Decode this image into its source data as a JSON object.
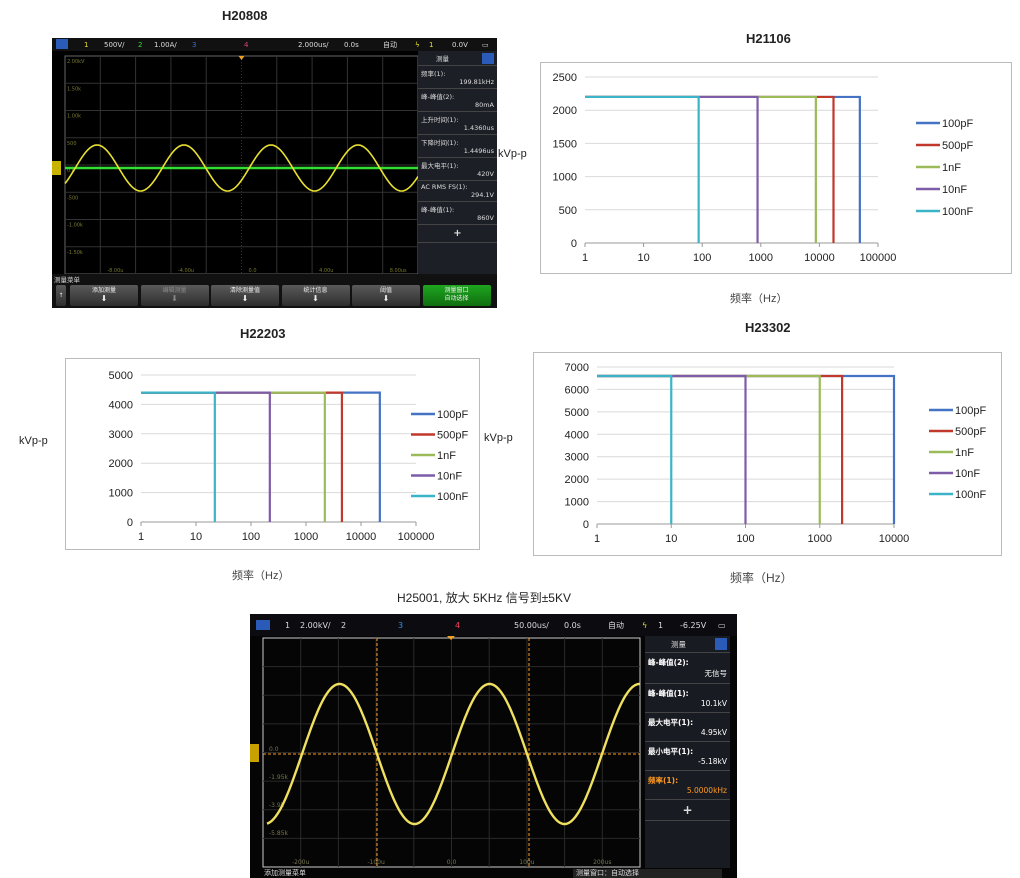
{
  "scope1": {
    "title": "H20808",
    "topbar": {
      "ch1": "1",
      "ch1_scale": "500V/",
      "ch2": "2",
      "ch2_scale": "1.00A/",
      "ch3": "3",
      "ch4": "4",
      "timebase": "2.000us/",
      "delay": "0.0s",
      "mode": "自动",
      "trig_ch": "1",
      "trig_level": "0.0V"
    },
    "y_ticks": [
      "2.00kV",
      "1.50k",
      "1.00k",
      "500",
      "0.0",
      "-500",
      "-1.00k",
      "-1.50k"
    ],
    "x_ticks": [
      "-8.00u",
      "-4.00u",
      "0.0",
      "4.00u",
      "8.00us"
    ],
    "panel_title": "测量",
    "measurements": [
      {
        "label": "频率(1):",
        "value": "199.81kHz"
      },
      {
        "label": "峰-峰值(2):",
        "value": "80mA"
      },
      {
        "label": "上升时间(1):",
        "value": "1.4360us"
      },
      {
        "label": "下降时间(1):",
        "value": "1.4496us"
      },
      {
        "label": "最大电平(1):",
        "value": "420V"
      },
      {
        "label": "AC RMS FS(1):",
        "value": "294.1V"
      },
      {
        "label": "峰-峰值(1):",
        "value": "860V"
      }
    ],
    "add_symbol": "+",
    "menu_title": "测量菜单",
    "menu_buttons": [
      "添加测量",
      "编辑测量",
      "清除测量值",
      "统计信息",
      "阈值",
      "测量窗口\n自动选择"
    ],
    "colors": {
      "ch1": "#e8e030",
      "ch2": "#33dd33"
    }
  },
  "scope2": {
    "topbar": {
      "ch1": "1",
      "ch1_scale": "2.00kV/",
      "ch2": "2",
      "ch3": "3",
      "ch4": "4",
      "timebase": "50.00us/",
      "delay": "0.0s",
      "mode": "自动",
      "trig_ch": "1",
      "trig_level": "-6.25V"
    },
    "y_ticks": [
      "0.0",
      "-1.95k",
      "-3.9k",
      "-5.85k"
    ],
    "x_ticks": [
      "-200u",
      "-100u",
      "0.0",
      "100u",
      "200us"
    ],
    "panel_title": "测量",
    "measurements": [
      {
        "label": "峰-峰值(2):",
        "value": "无信号"
      },
      {
        "label": "峰-峰值(1):",
        "value": "10.1kV"
      },
      {
        "label": "最大电平(1):",
        "value": "4.95kV"
      },
      {
        "label": "最小电平(1):",
        "value": "-5.18kV"
      },
      {
        "label": "频率(1):",
        "value": "5.0000kHz",
        "highlight": true
      }
    ],
    "add_symbol": "+",
    "menu_left": "添加测量菜单",
    "menu_right": "测量窗口：自动选择",
    "colors": {
      "ch1": "#f0e060",
      "highlight": "#ff9a20"
    }
  },
  "caption": "H25001, 放大 5KHz 信号到±5KV",
  "chart_data": [
    {
      "type": "line",
      "title": "H21106",
      "xlabel": "频率（Hz）",
      "ylabel": "kVp-p",
      "x_scale": "log",
      "xlim": [
        1,
        100000
      ],
      "ylim": [
        0,
        2500
      ],
      "x_ticks": [
        "1",
        "10",
        "100",
        "1000",
        "10000",
        "100000"
      ],
      "y_ticks": [
        "0",
        "500",
        "1000",
        "1500",
        "2000",
        "2500"
      ],
      "grid": true,
      "legend": "right",
      "series": [
        {
          "name": "100pF",
          "color": "#4472c4",
          "x": [
            1,
            49000,
            49000
          ],
          "y": [
            2200,
            2200,
            0
          ]
        },
        {
          "name": "500pF",
          "color": "#c0392b",
          "x": [
            1,
            17400,
            17400
          ],
          "y": [
            2200,
            2200,
            0
          ]
        },
        {
          "name": "1nF",
          "color": "#9bbb59",
          "x": [
            1,
            8700,
            8700
          ],
          "y": [
            2200,
            2200,
            0
          ]
        },
        {
          "name": "10nF",
          "color": "#7e5ca8",
          "x": [
            1,
            880,
            880
          ],
          "y": [
            2200,
            2200,
            0
          ]
        },
        {
          "name": "100nF",
          "color": "#3cb4c8",
          "x": [
            1,
            87,
            87
          ],
          "y": [
            2200,
            2200,
            0
          ]
        }
      ]
    },
    {
      "type": "line",
      "title": "H22203",
      "xlabel": "频率（Hz）",
      "ylabel": "kVp-p",
      "x_scale": "log",
      "xlim": [
        1,
        100000
      ],
      "ylim": [
        0,
        5000
      ],
      "x_ticks": [
        "1",
        "10",
        "100",
        "1000",
        "10000",
        "100000"
      ],
      "y_ticks": [
        "0",
        "1000",
        "2000",
        "3000",
        "4000",
        "5000"
      ],
      "grid": true,
      "legend": "right",
      "series": [
        {
          "name": "100pF",
          "color": "#4472c4",
          "x": [
            1,
            22000,
            22000
          ],
          "y": [
            4400,
            4400,
            0
          ]
        },
        {
          "name": "500pF",
          "color": "#c0392b",
          "x": [
            1,
            4500,
            4500
          ],
          "y": [
            4400,
            4400,
            0
          ]
        },
        {
          "name": "1nF",
          "color": "#9bbb59",
          "x": [
            1,
            2200,
            2200
          ],
          "y": [
            4400,
            4400,
            0
          ]
        },
        {
          "name": "10nF",
          "color": "#7e5ca8",
          "x": [
            1,
            220,
            220
          ],
          "y": [
            4400,
            4400,
            0
          ]
        },
        {
          "name": "100nF",
          "color": "#3cb4c8",
          "x": [
            1,
            22,
            22
          ],
          "y": [
            4400,
            4400,
            0
          ]
        }
      ]
    },
    {
      "type": "line",
      "title": "H23302",
      "xlabel": "频率（Hz）",
      "ylabel": "kVp-p",
      "x_scale": "log",
      "xlim": [
        1,
        10000
      ],
      "ylim": [
        0,
        7000
      ],
      "x_ticks": [
        "1",
        "10",
        "100",
        "1000",
        "10000"
      ],
      "y_ticks": [
        "0",
        "1000",
        "2000",
        "3000",
        "4000",
        "5000",
        "6000",
        "7000"
      ],
      "grid": true,
      "legend": "right",
      "series": [
        {
          "name": "100pF",
          "color": "#4472c4",
          "x": [
            1,
            10000,
            10000
          ],
          "y": [
            6600,
            6600,
            0
          ]
        },
        {
          "name": "500pF",
          "color": "#c0392b",
          "x": [
            1,
            2000,
            2000
          ],
          "y": [
            6600,
            6600,
            0
          ]
        },
        {
          "name": "1nF",
          "color": "#9bbb59",
          "x": [
            1,
            1000,
            1000
          ],
          "y": [
            6600,
            6600,
            0
          ]
        },
        {
          "name": "10nF",
          "color": "#7e5ca8",
          "x": [
            1,
            100,
            100
          ],
          "y": [
            6600,
            6600,
            0
          ]
        },
        {
          "name": "100nF",
          "color": "#3cb4c8",
          "x": [
            1,
            10,
            10
          ],
          "y": [
            6600,
            6600,
            0
          ]
        }
      ]
    }
  ]
}
